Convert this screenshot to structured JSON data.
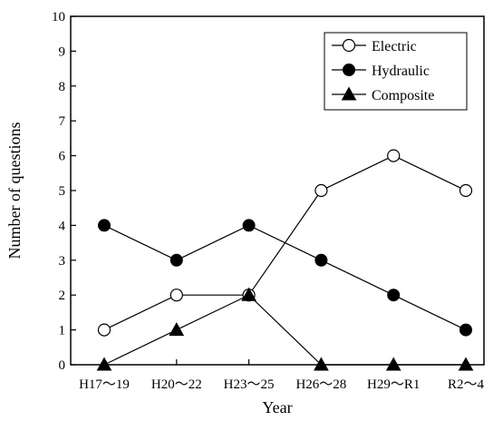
{
  "chart_data": {
    "type": "line",
    "title": "",
    "xlabel": "Year",
    "ylabel": "Number of questions",
    "categories": [
      "H17～19",
      "H20～22",
      "H23～25",
      "H26～28",
      "H29～R1",
      "R2～4"
    ],
    "yticks": [
      "0",
      "1",
      "2",
      "3",
      "4",
      "5",
      "6",
      "7",
      "8",
      "9",
      "10"
    ],
    "ylim": [
      0,
      10
    ],
    "grid": false,
    "legend_position": "top-right",
    "series": [
      {
        "name": "Electric",
        "marker": "open-circle",
        "values": [
          1,
          2,
          2,
          5,
          6,
          5
        ]
      },
      {
        "name": "Hydraulic",
        "marker": "filled-circle",
        "values": [
          4,
          3,
          4,
          3,
          2,
          1
        ]
      },
      {
        "name": "Composite",
        "marker": "filled-triangle",
        "values": [
          0,
          1,
          2,
          0,
          0,
          0
        ]
      }
    ],
    "colors": {
      "line": "#000000",
      "marker_fill": "#000000",
      "background": "#ffffff"
    }
  }
}
